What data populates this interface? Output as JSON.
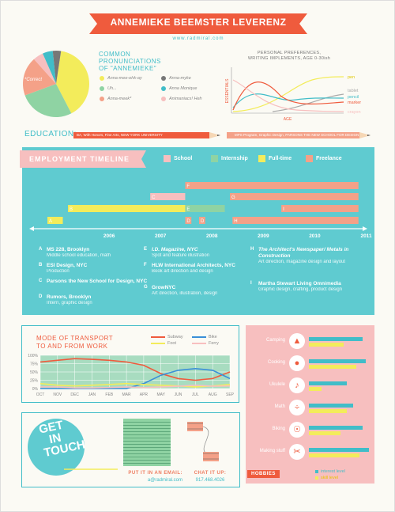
{
  "colors": {
    "coral": "#ef5b3d",
    "teal": "#41bdc8",
    "yellow": "#f3ec5b",
    "green": "#8fd3a3",
    "salmon": "#f4a188",
    "pink": "#f7bfbf",
    "grey": "#777777"
  },
  "header": {
    "name": "ANNEMIEKE BEEMSTER LEVERENZ",
    "url": "www.radmiral.com"
  },
  "pronunciations": {
    "title_lines": [
      "COMMON",
      "PRONUNCIATIONS",
      "OF \"ANNEMIEKE\""
    ],
    "correct_label": "*Correct",
    "legend": [
      {
        "label": "Anna-mee-ehk-ay",
        "color": "#f3ec5b"
      },
      {
        "label": "Anna-myke",
        "color": "#777777"
      },
      {
        "label": "Uh...",
        "color": "#8fd3a3"
      },
      {
        "label": "Anna Monique",
        "color": "#41bdc8"
      },
      {
        "label": "Anna-meek*",
        "color": "#f4a188"
      },
      {
        "label": "Animaniacs! Heh",
        "color": "#f7bfbf"
      }
    ],
    "pie": [
      {
        "label": "Anna-mee-ehk-ay",
        "value": 40,
        "color": "#f3ec5b"
      },
      {
        "label": "Uh...",
        "value": 27,
        "color": "#8fd3a3"
      },
      {
        "label": "Anna-meek*",
        "value": 19,
        "color": "#f4a188"
      },
      {
        "label": "Animaniacs! Heh",
        "value": 5,
        "color": "#f7bfbf"
      },
      {
        "label": "Anna Monique",
        "value": 5,
        "color": "#41bdc8"
      },
      {
        "label": "Anna-myke",
        "value": 4,
        "color": "#777777"
      }
    ]
  },
  "preferences": {
    "title_lines": [
      "PERSONAL PREFERENCES,",
      "WRITING IMPLEMENTS, AGE 0-30ish"
    ],
    "ylabel": "ESSENTIALS",
    "xlabel": "AGE",
    "series": [
      {
        "name": "pen",
        "color": "#f3ec5b"
      },
      {
        "name": "tablet",
        "color": "#aaaaaa"
      },
      {
        "name": "pencil",
        "color": "#41bdc8"
      },
      {
        "name": "marker",
        "color": "#ef5b3d"
      },
      {
        "name": "crayon",
        "color": "#f7bfbf"
      }
    ]
  },
  "education": {
    "label": "EDUCATION:",
    "bar1": "BA, With Honors, Fine Arts, NEW YORK UNIVERSITY",
    "bar2": "MPS Program, Graphic Design, PARSONS THE NEW SCHOOL FOR DESIGN"
  },
  "employment": {
    "title": "EMPLOYMENT TIMELINE",
    "legend": [
      {
        "label": "School",
        "color": "#f7bfbf"
      },
      {
        "label": "Internship",
        "color": "#8fd3a3"
      },
      {
        "label": "Full-time",
        "color": "#f3ec5b"
      },
      {
        "label": "Freelance",
        "color": "#f4a188"
      }
    ],
    "years": [
      "2006",
      "2007",
      "2008",
      "2009",
      "2010",
      "2011"
    ],
    "bars": [
      {
        "letter": "F",
        "color": "#f4a188",
        "start": 2007.98,
        "end": 2011.35,
        "row": 0
      },
      {
        "letter": "C",
        "color": "#f7bfbf",
        "start": 2007.3,
        "end": 2007.98,
        "row": 1
      },
      {
        "letter": "G",
        "color": "#f4a188",
        "start": 2008.85,
        "end": 2011.35,
        "row": 1
      },
      {
        "letter": "B",
        "color": "#f3ec5b",
        "start": 2005.7,
        "end": 2007.98,
        "row": 2
      },
      {
        "letter": "E",
        "color": "#8fd3a3",
        "start": 2007.98,
        "end": 2008.75,
        "row": 2
      },
      {
        "letter": "I",
        "color": "#f4a188",
        "start": 2009.85,
        "end": 2011.35,
        "row": 2
      },
      {
        "letter": "A",
        "color": "#f3ec5b",
        "start": 2005.3,
        "end": 2005.6,
        "row": 3
      },
      {
        "letter": "D",
        "color": "#f4a188",
        "start": 2007.98,
        "end": 2008.1,
        "row": 3
      },
      {
        "letter": "D",
        "color": "#f4a188",
        "start": 2008.25,
        "end": 2008.37,
        "row": 3
      },
      {
        "letter": "H",
        "color": "#f4a188",
        "start": 2008.9,
        "end": 2011.35,
        "row": 3
      }
    ],
    "entries": [
      {
        "letter": "A",
        "title": "MS 228, Brooklyn",
        "desc": "Middle school education, math"
      },
      {
        "letter": "B",
        "title": "ESI Design, NYC",
        "desc": "Production"
      },
      {
        "letter": "C",
        "title": "Parsons the New School for Design, NYC",
        "desc": ""
      },
      {
        "letter": "D",
        "title": "Rumors, Brooklyn",
        "desc": "Intern, graphic design"
      },
      {
        "letter": "E",
        "title": "I.D. Magazine, NYC",
        "desc": "Spot and feature illustration"
      },
      {
        "letter": "F",
        "title": "HLW International Architects, NYC",
        "desc": "Book art direction and design"
      },
      {
        "letter": "G",
        "title": "GrowNYC",
        "desc": "Art direction, illustration, design"
      },
      {
        "letter": "H",
        "title": "The Architect's Newspaper/ Metals in Construction",
        "desc": "Art direction, magazine design and layout"
      },
      {
        "letter": "I",
        "title": "Martha Stewart Living Omnimedia",
        "desc": "Graphic design, crafting, product design"
      }
    ]
  },
  "transport": {
    "title_lines": [
      "MODE OF TRANSPORT",
      "TO AND FROM WORK"
    ],
    "legend": [
      {
        "label": "Subway",
        "color": "#ef5b3d"
      },
      {
        "label": "Bike",
        "color": "#3a8fd8"
      },
      {
        "label": "Foot",
        "color": "#f3ec5b"
      },
      {
        "label": "Ferry",
        "color": "#f7bfbf"
      }
    ]
  },
  "chart_data": {
    "type": "line",
    "categories": [
      "OCT",
      "NOV",
      "DEC",
      "JAN",
      "FEB",
      "MAR",
      "APR",
      "MAY",
      "JUN",
      "JUL",
      "AUG",
      "SEP"
    ],
    "ylim": [
      0,
      100
    ],
    "yticks": [
      "100%",
      "75%",
      "50%",
      "25%",
      "0%"
    ],
    "series": [
      {
        "name": "Subway",
        "color": "#ef5b3d",
        "values": [
          80,
          85,
          90,
          88,
          85,
          80,
          70,
          45,
          30,
          25,
          30,
          50
        ]
      },
      {
        "name": "Bike",
        "color": "#3a8fd8",
        "values": [
          0,
          0,
          0,
          0,
          0,
          0,
          15,
          40,
          55,
          60,
          55,
          30
        ]
      },
      {
        "name": "Foot",
        "color": "#f3ec5b",
        "values": [
          15,
          10,
          8,
          10,
          12,
          15,
          12,
          10,
          8,
          5,
          8,
          12
        ]
      },
      {
        "name": "Ferry",
        "color": "#f7bfbf",
        "values": [
          5,
          5,
          2,
          2,
          3,
          5,
          3,
          5,
          7,
          10,
          7,
          8
        ]
      }
    ]
  },
  "hobbies": {
    "tag": "HOBBIES",
    "items": [
      {
        "label": "Camping",
        "interest": 0.85,
        "skill": 0.55
      },
      {
        "label": "Cooking",
        "interest": 0.9,
        "skill": 0.75
      },
      {
        "label": "Ukulele",
        "interest": 0.6,
        "skill": 0.2
      },
      {
        "label": "Math",
        "interest": 0.7,
        "skill": 0.6
      },
      {
        "label": "Biking",
        "interest": 0.85,
        "skill": 0.5
      },
      {
        "label": "Making stuff",
        "interest": 0.95,
        "skill": 0.8
      }
    ],
    "legend": [
      "interest level",
      "skill level"
    ]
  },
  "contact": {
    "badge_lines": [
      "GET",
      "IN",
      "TOUCH"
    ],
    "email_label": "PUT IT IN AN EMAIL:",
    "email": "a@radmiral.com",
    "phone_label": "CHAT IT UP:",
    "phone": "917.468.4026"
  }
}
